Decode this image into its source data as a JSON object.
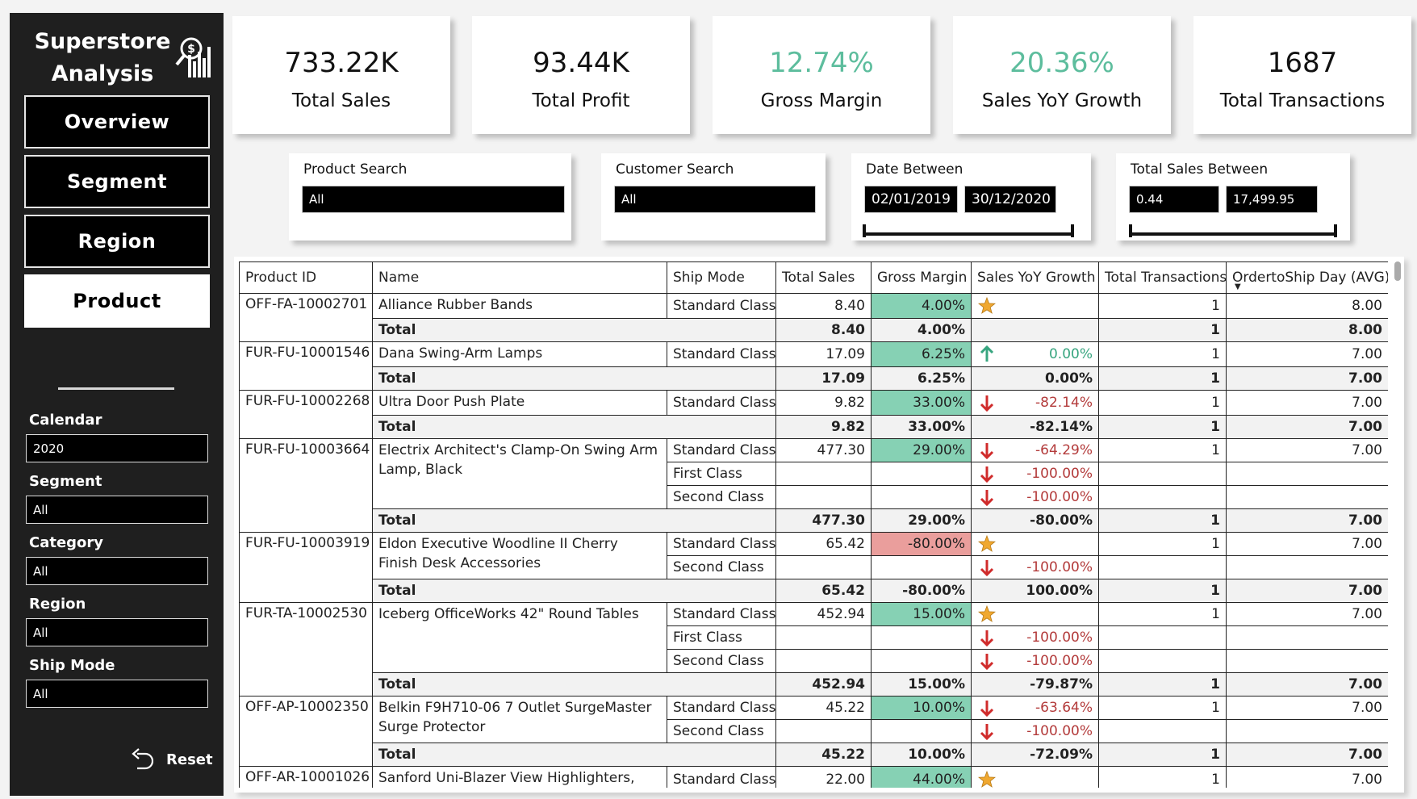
{
  "sidebar": {
    "title_line1": "Superstore",
    "title_line2": "Analysis",
    "nav": [
      {
        "label": "Overview",
        "active": false
      },
      {
        "label": "Segment",
        "active": false
      },
      {
        "label": "Region",
        "active": false
      },
      {
        "label": "Product",
        "active": true
      }
    ],
    "filters": [
      {
        "label": "Calendar",
        "value": "2020"
      },
      {
        "label": "Segment",
        "value": "All"
      },
      {
        "label": "Category",
        "value": "All"
      },
      {
        "label": "Region",
        "value": "All"
      },
      {
        "label": "Ship Mode",
        "value": "All"
      }
    ],
    "reset_label": "Reset"
  },
  "kpis": [
    {
      "value": "733.22K",
      "label": "Total Sales",
      "accent": false
    },
    {
      "value": "93.44K",
      "label": "Total Profit",
      "accent": false
    },
    {
      "value": "12.74%",
      "label": "Gross Margin",
      "accent": true
    },
    {
      "value": "20.36%",
      "label": "Sales YoY Growth",
      "accent": true
    },
    {
      "value": "1687",
      "label": "Total Transactions",
      "accent": false
    }
  ],
  "slicers": {
    "product": {
      "title": "Product Search",
      "value": "All"
    },
    "customer": {
      "title": "Customer Search",
      "value": "All"
    },
    "date": {
      "title": "Date Between",
      "from": "02/01/2019",
      "to": "30/12/2020"
    },
    "sales": {
      "title": "Total Sales Between",
      "from": "0.44",
      "to": "17,499.95"
    }
  },
  "table": {
    "columns": [
      "Product ID",
      "Name",
      "Ship Mode",
      "Total Sales",
      "Gross Margin",
      "Sales YoY Growth",
      "Total Transactions",
      "OrdertoShip Day (AVG)"
    ],
    "total_label": "Total",
    "groups": [
      {
        "id": "OFF-FA-10002701",
        "name": "Alliance Rubber Bands",
        "rows": [
          {
            "ship": "Standard Class",
            "sales": "8.40",
            "margin": "4.00%",
            "margin_color": "green",
            "icon": "star",
            "growth": "",
            "tx": "1",
            "days": "8.00"
          }
        ],
        "total": {
          "sales": "8.40",
          "margin": "4.00%",
          "growth": "",
          "tx": "1",
          "days": "8.00"
        }
      },
      {
        "id": "FUR-FU-10001546",
        "name": "Dana Swing-Arm Lamps",
        "rows": [
          {
            "ship": "Standard Class",
            "sales": "17.09",
            "margin": "6.25%",
            "margin_color": "green",
            "icon": "up",
            "growth": "0.00%",
            "tx": "1",
            "days": "7.00"
          }
        ],
        "total": {
          "sales": "17.09",
          "margin": "6.25%",
          "growth": "0.00%",
          "tx": "1",
          "days": "7.00"
        }
      },
      {
        "id": "FUR-FU-10002268",
        "name": "Ultra Door Push Plate",
        "rows": [
          {
            "ship": "Standard Class",
            "sales": "9.82",
            "margin": "33.00%",
            "margin_color": "green",
            "icon": "down",
            "growth": "-82.14%",
            "tx": "1",
            "days": "7.00"
          }
        ],
        "total": {
          "sales": "9.82",
          "margin": "33.00%",
          "growth": "-82.14%",
          "tx": "1",
          "days": "7.00"
        }
      },
      {
        "id": "FUR-FU-10003664",
        "name": "Electrix Architect's Clamp-On Swing Arm Lamp, Black",
        "rows": [
          {
            "ship": "Standard Class",
            "sales": "477.30",
            "margin": "29.00%",
            "margin_color": "green",
            "icon": "down",
            "growth": "-64.29%",
            "tx": "1",
            "days": "7.00"
          },
          {
            "ship": "First Class",
            "sales": "",
            "margin": "",
            "margin_color": "",
            "icon": "down",
            "growth": "-100.00%",
            "tx": "",
            "days": ""
          },
          {
            "ship": "Second Class",
            "sales": "",
            "margin": "",
            "margin_color": "",
            "icon": "down",
            "growth": "-100.00%",
            "tx": "",
            "days": ""
          }
        ],
        "total": {
          "sales": "477.30",
          "margin": "29.00%",
          "growth": "-80.00%",
          "tx": "1",
          "days": "7.00"
        }
      },
      {
        "id": "FUR-FU-10003919",
        "name": "Eldon Executive Woodline II Cherry Finish Desk Accessories",
        "rows": [
          {
            "ship": "Standard Class",
            "sales": "65.42",
            "margin": "-80.00%",
            "margin_color": "red",
            "icon": "star",
            "growth": "",
            "tx": "1",
            "days": "7.00"
          },
          {
            "ship": "Second Class",
            "sales": "",
            "margin": "",
            "margin_color": "",
            "icon": "down",
            "growth": "-100.00%",
            "tx": "",
            "days": ""
          }
        ],
        "total": {
          "sales": "65.42",
          "margin": "-80.00%",
          "growth": "100.00%",
          "tx": "1",
          "days": "7.00"
        }
      },
      {
        "id": "FUR-TA-10002530",
        "name": "Iceberg OfficeWorks 42\" Round Tables",
        "rows": [
          {
            "ship": "Standard Class",
            "sales": "452.94",
            "margin": "15.00%",
            "margin_color": "green",
            "icon": "star",
            "growth": "",
            "tx": "1",
            "days": "7.00"
          },
          {
            "ship": "First Class",
            "sales": "",
            "margin": "",
            "margin_color": "",
            "icon": "down",
            "growth": "-100.00%",
            "tx": "",
            "days": ""
          },
          {
            "ship": "Second Class",
            "sales": "",
            "margin": "",
            "margin_color": "",
            "icon": "down",
            "growth": "-100.00%",
            "tx": "",
            "days": ""
          }
        ],
        "total": {
          "sales": "452.94",
          "margin": "15.00%",
          "growth": "-79.87%",
          "tx": "1",
          "days": "7.00"
        }
      },
      {
        "id": "OFF-AP-10002350",
        "name": "Belkin F9H710-06 7 Outlet SurgeMaster Surge Protector",
        "rows": [
          {
            "ship": "Standard Class",
            "sales": "45.22",
            "margin": "10.00%",
            "margin_color": "green",
            "icon": "down",
            "growth": "-63.64%",
            "tx": "1",
            "days": "7.00"
          },
          {
            "ship": "Second Class",
            "sales": "",
            "margin": "",
            "margin_color": "",
            "icon": "down",
            "growth": "-100.00%",
            "tx": "",
            "days": ""
          }
        ],
        "total": {
          "sales": "45.22",
          "margin": "10.00%",
          "growth": "-72.09%",
          "tx": "1",
          "days": "7.00"
        }
      },
      {
        "id": "OFF-AR-10001026",
        "name": "Sanford Uni-Blazer View Highlighters,",
        "rows": [
          {
            "ship": "Standard Class",
            "sales": "22.00",
            "margin": "44.00%",
            "margin_color": "green",
            "icon": "star",
            "growth": "",
            "tx": "1",
            "days": "7.00"
          }
        ],
        "total": null
      }
    ]
  },
  "colors": {
    "accent_green": "#5dbd9d",
    "margin_green": "#86d1b4",
    "margin_red": "#ea9e9c",
    "up_arrow": "#37a57f",
    "down_arrow": "#d02b2b",
    "star": "#f0a830"
  }
}
